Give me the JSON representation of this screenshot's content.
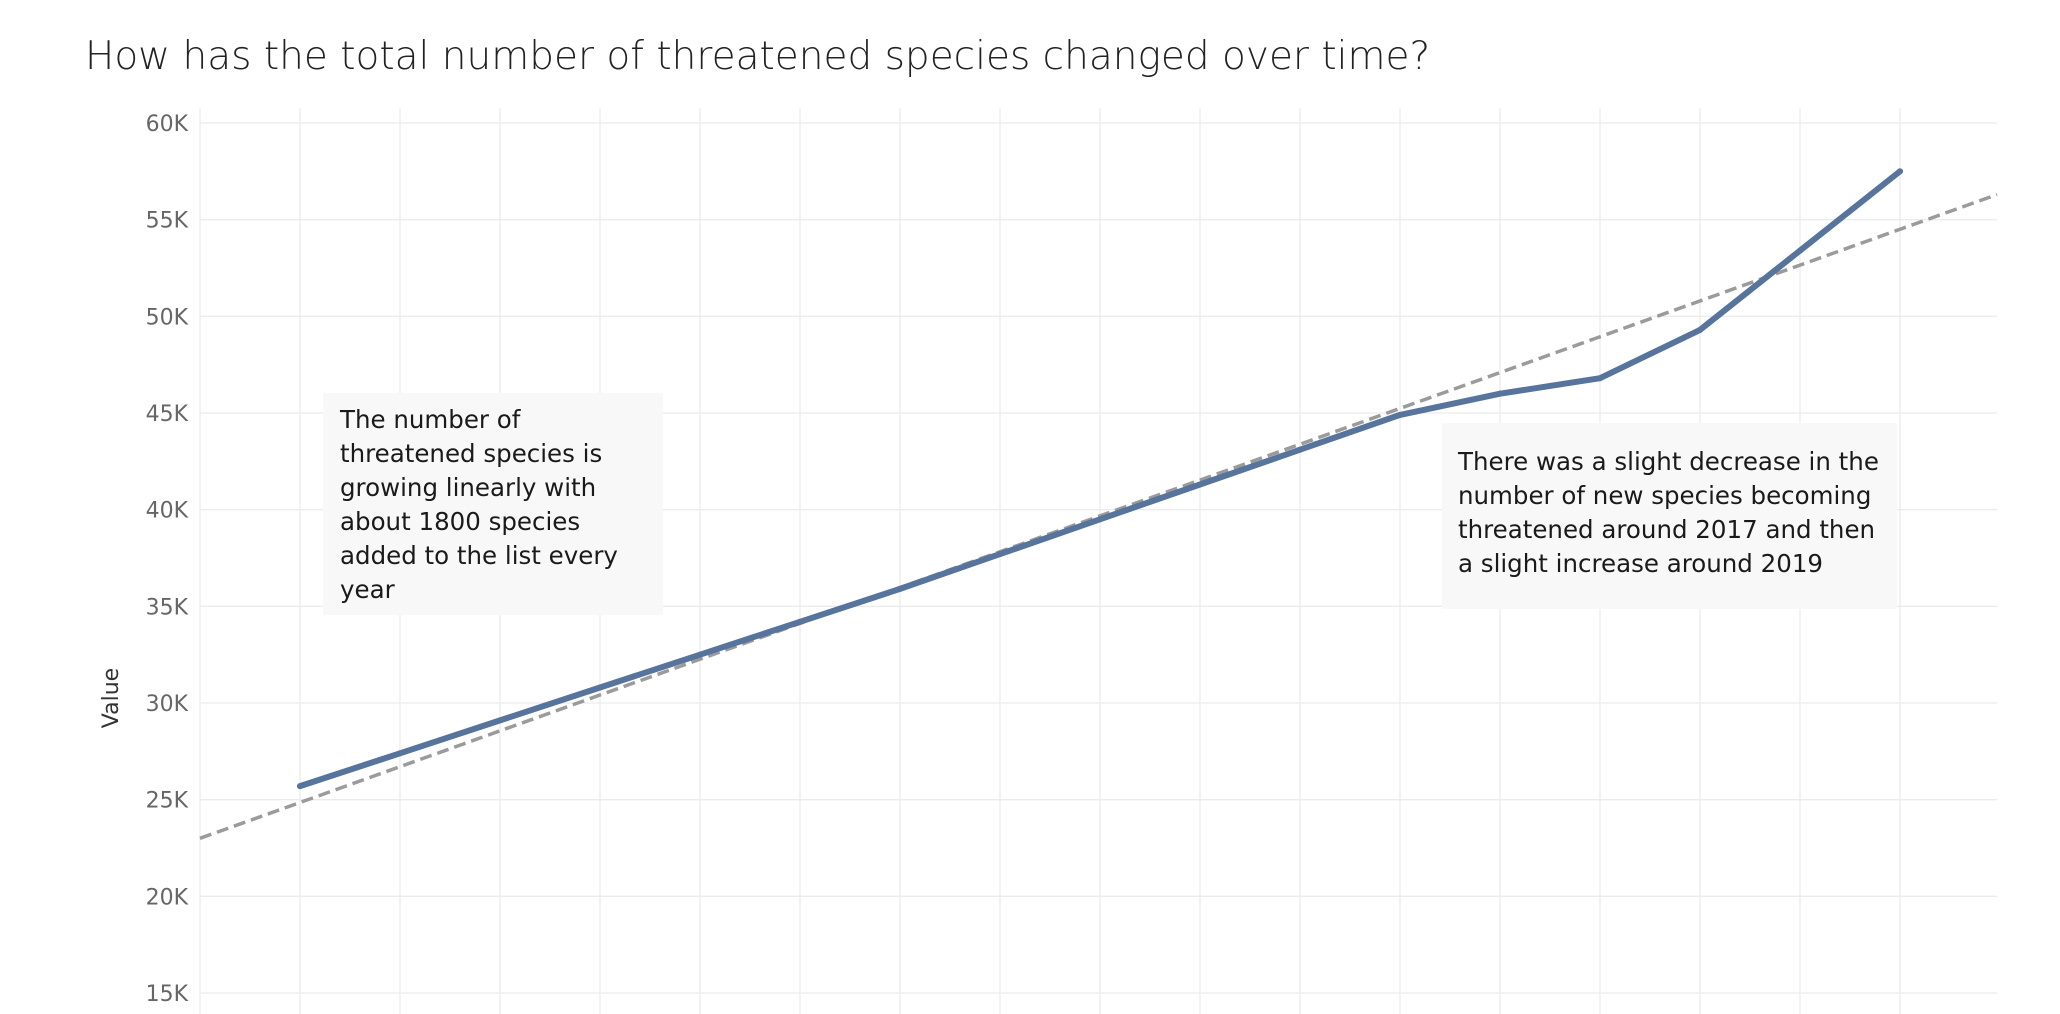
{
  "chart_data": {
    "type": "line",
    "title": "How has the total number of threatened species changed over time?",
    "ylabel": "Value",
    "xlabel": "",
    "ylim": [
      14000,
      61000
    ],
    "y_ticks": [
      15000,
      20000,
      25000,
      30000,
      35000,
      40000,
      45000,
      50000,
      55000,
      60000
    ],
    "y_tick_labels": [
      "15K",
      "20K",
      "25K",
      "30K",
      "35K",
      "40K",
      "45K",
      "50K",
      "55K",
      "60K"
    ],
    "x_gridline_count": 18,
    "grid": true,
    "series": [
      {
        "values": [
          25700,
          27400,
          29100,
          30800,
          32500,
          34200,
          35900,
          37700,
          39500,
          41300,
          43100,
          44900,
          46000,
          46800,
          49300,
          53400,
          57500
        ],
        "color": "#56749c",
        "style": "solid"
      },
      {
        "trend": "linear",
        "start": 23000,
        "end": 56300,
        "color": "#9b9b9b",
        "style": "dashed"
      }
    ]
  },
  "annotations": {
    "left": "The number of threatened species is growing linearly with about 1800 species added to the list every year",
    "right": "There was a slight decrease in the number of new species becoming threatened around 2017 and then a slight increase around 2019"
  }
}
